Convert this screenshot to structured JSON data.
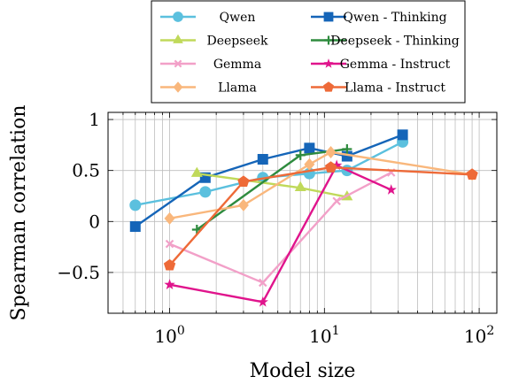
{
  "chart_data": {
    "type": "line",
    "xlabel": "Model size",
    "ylabel": "Spearman correlation",
    "xscale": "log",
    "xlim": [
      0.4,
      130
    ],
    "ylim": [
      -0.9,
      1.07
    ],
    "grid": true,
    "legend_position": "top",
    "x_ticks": [
      {
        "value": 1,
        "base": "10",
        "exp": "0"
      },
      {
        "value": 10,
        "base": "10",
        "exp": "1"
      },
      {
        "value": 100,
        "base": "10",
        "exp": "2"
      }
    ],
    "y_ticks": [
      {
        "value": 1,
        "label": "1"
      },
      {
        "value": 0.5,
        "label": "0.5"
      },
      {
        "value": 0,
        "label": "0"
      },
      {
        "value": -0.5,
        "label": "−0.5"
      }
    ],
    "series": [
      {
        "name": "Qwen",
        "color": "#5BC0DE",
        "marker": "circle",
        "x": [
          0.6,
          1.7,
          4,
          8,
          14,
          32
        ],
        "y": [
          0.16,
          0.29,
          0.43,
          0.47,
          0.5,
          0.78
        ]
      },
      {
        "name": "Qwen - Thinking",
        "color": "#1565B8",
        "marker": "square",
        "x": [
          0.6,
          1.7,
          4,
          8,
          14,
          32
        ],
        "y": [
          -0.05,
          0.43,
          0.61,
          0.72,
          0.64,
          0.85
        ]
      },
      {
        "name": "Deepseek",
        "color": "#C0D95A",
        "marker": "triangle",
        "x": [
          1.5,
          7,
          14
        ],
        "y": [
          0.47,
          0.33,
          0.24
        ]
      },
      {
        "name": "Deepseek - Thinking",
        "color": "#2E8B3E",
        "marker": "plus",
        "x": [
          1.5,
          7,
          14
        ],
        "y": [
          -0.08,
          0.65,
          0.71
        ]
      },
      {
        "name": "Gemma",
        "color": "#F2A0C8",
        "marker": "cross",
        "x": [
          1,
          4,
          12,
          27
        ],
        "y": [
          -0.22,
          -0.6,
          0.2,
          0.48
        ]
      },
      {
        "name": "Gemma - Instruct",
        "color": "#E0148C",
        "marker": "star",
        "x": [
          1,
          4,
          12,
          27
        ],
        "y": [
          -0.62,
          -0.79,
          0.55,
          0.31
        ]
      },
      {
        "name": "Llama",
        "color": "#F9B77C",
        "marker": "diamond",
        "x": [
          1,
          3,
          8,
          11,
          90
        ],
        "y": [
          0.03,
          0.16,
          0.56,
          0.68,
          0.46
        ]
      },
      {
        "name": "Llama - Instruct",
        "color": "#EE6A38",
        "marker": "pentagon",
        "x": [
          1,
          3,
          11,
          90
        ],
        "y": [
          -0.43,
          0.39,
          0.53,
          0.46
        ]
      }
    ]
  }
}
